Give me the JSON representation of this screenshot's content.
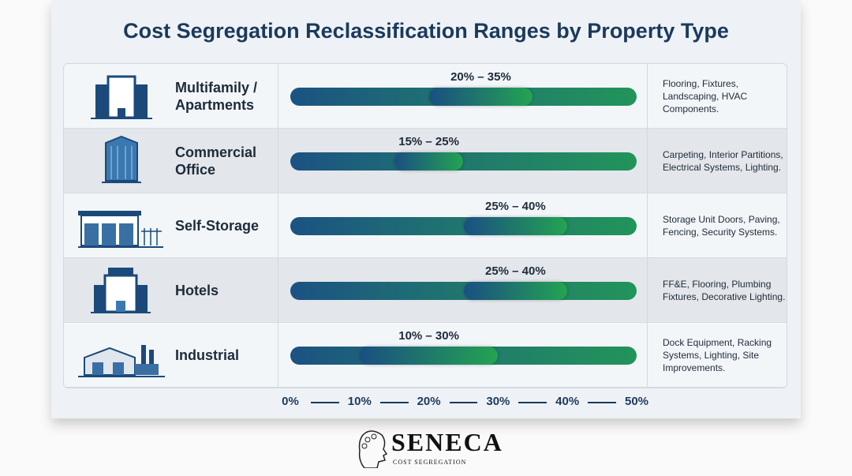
{
  "chart_data": {
    "type": "bar",
    "title": "Cost Segregation Reclassification Ranges by Property Type",
    "xlim": [
      0,
      50
    ],
    "x_ticks": [
      "0%",
      "10%",
      "20%",
      "30%",
      "40%",
      "50%"
    ],
    "rows": [
      {
        "category": "Multifamily / Apartments",
        "icon": "apartment-building-icon",
        "low": 20,
        "high": 35,
        "label": "20% – 35%",
        "description": "Flooring, Fixtures, Landscaping, HVAC Components."
      },
      {
        "category": "Commercial Office",
        "icon": "office-tower-icon",
        "low": 15,
        "high": 25,
        "label": "15% – 25%",
        "description": "Carpeting, Interior Partitions, Electrical Systems, Lighting."
      },
      {
        "category": "Self-Storage",
        "icon": "storage-facility-icon",
        "low": 25,
        "high": 40,
        "label": "25% – 40%",
        "description": "Storage Unit Doors, Paving, Fencing, Security Systems."
      },
      {
        "category": "Hotels",
        "icon": "hotel-icon",
        "low": 25,
        "high": 40,
        "label": "25% – 40%",
        "description": "FF&E, Flooring, Plumbing Fixtures, Decorative Lighting."
      },
      {
        "category": "Industrial",
        "icon": "factory-icon",
        "low": 10,
        "high": 30,
        "label": "10% – 30%",
        "description": "Dock Equipment, Racking Systems, Lighting, Site Improvements."
      }
    ],
    "colors": {
      "bar_start": "#1b5283",
      "bar_end": "#22945a",
      "title": "#1b3a5c"
    }
  },
  "logo": {
    "brand": "SENECA",
    "sub": "COST SEGREGATION"
  }
}
